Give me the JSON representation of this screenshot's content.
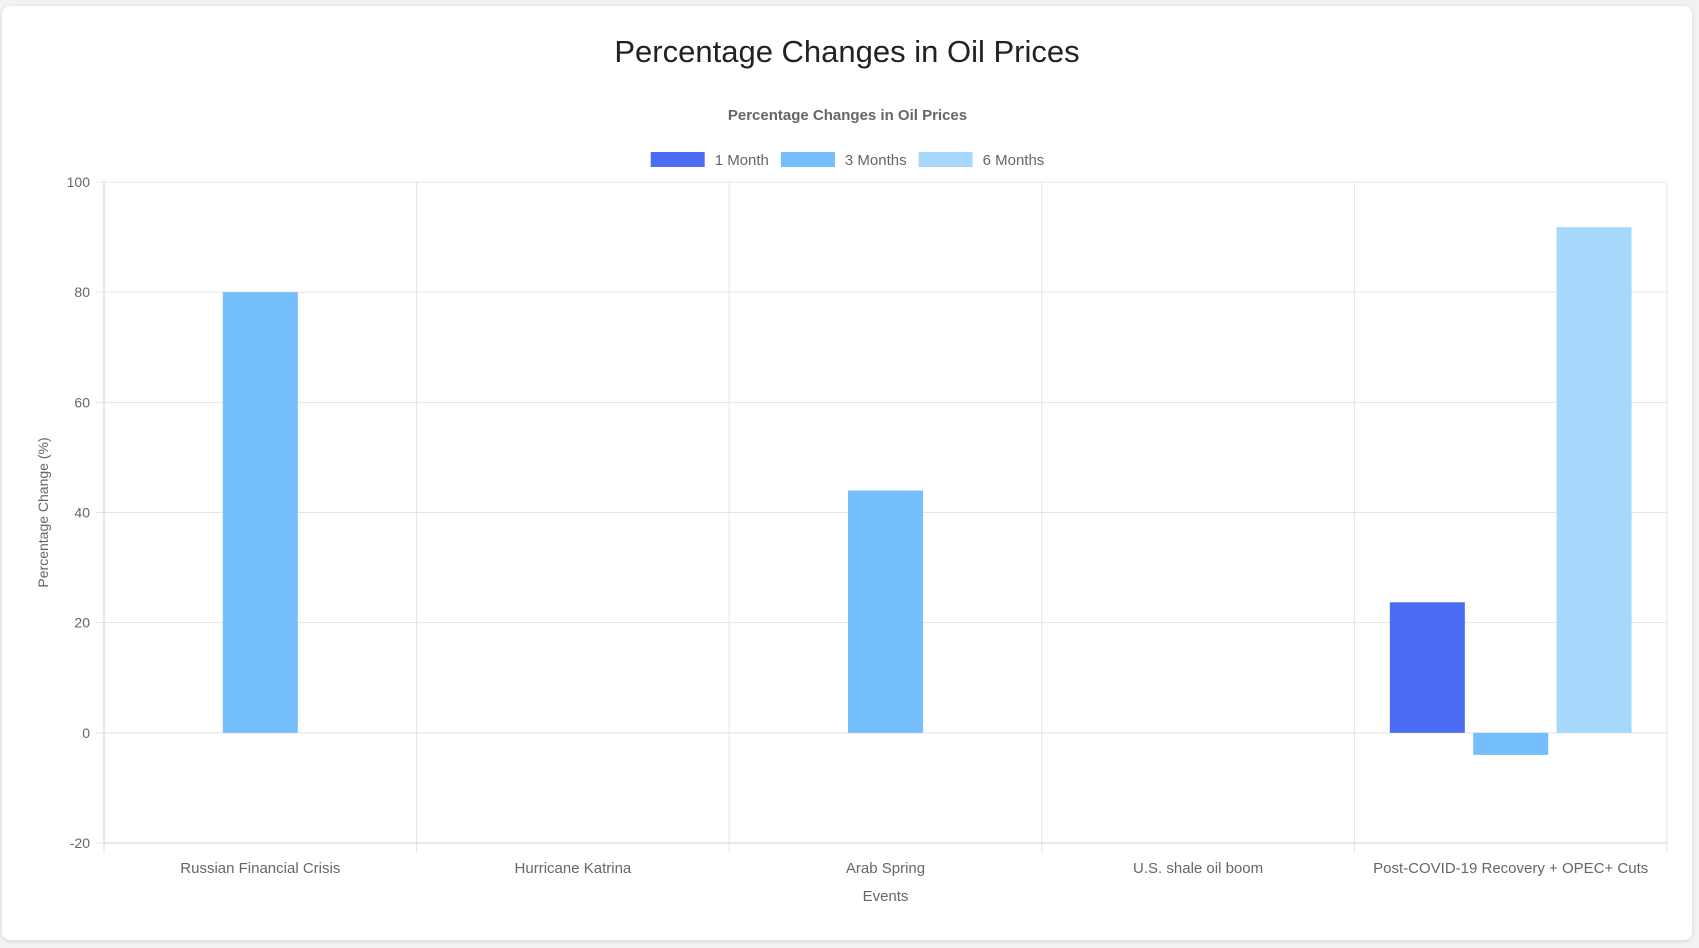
{
  "page": {
    "title": "Percentage Changes in Oil Prices"
  },
  "chart_data": {
    "type": "bar",
    "title": "Percentage Changes in Oil Prices",
    "xlabel": "Events",
    "ylabel": "Percentage Change (%)",
    "ylim": [
      -20,
      100
    ],
    "yticks": [
      -20,
      0,
      20,
      40,
      60,
      80,
      100
    ],
    "grid": true,
    "legend_position": "top-center",
    "categories": [
      "Russian Financial Crisis",
      "Hurricane Katrina",
      "Arab Spring",
      "U.S. shale oil boom",
      "Post-COVID-19 Recovery + OPEC+ Cuts"
    ],
    "series": [
      {
        "name": "1 Month",
        "color": "#4b6cf3",
        "values": [
          0,
          0,
          0,
          0,
          23.7
        ]
      },
      {
        "name": "3 Months",
        "color": "#74bffb",
        "values": [
          80,
          0,
          44,
          0,
          -4
        ]
      },
      {
        "name": "6 Months",
        "color": "#a6d8fc",
        "values": [
          0,
          0,
          0,
          0,
          91.8
        ]
      }
    ]
  }
}
